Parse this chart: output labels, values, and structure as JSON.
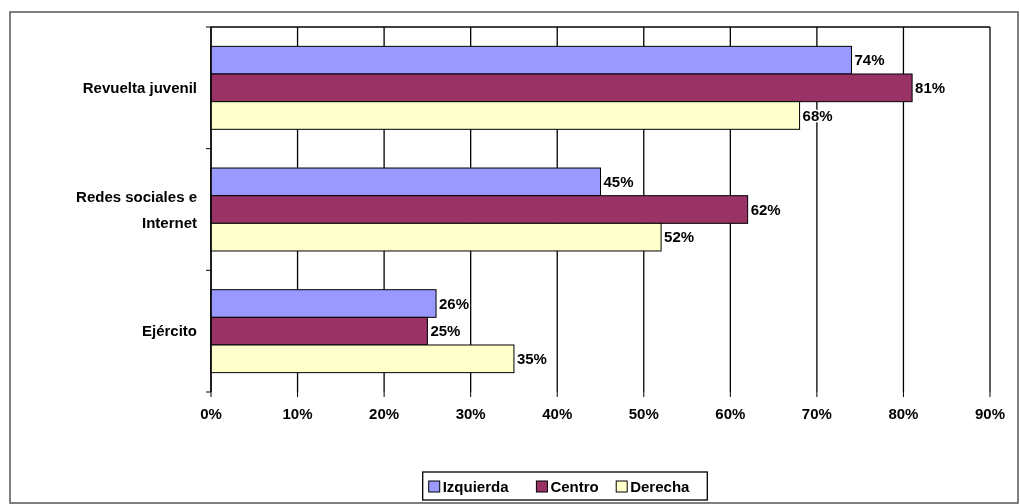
{
  "chart_data": {
    "type": "bar",
    "orientation": "horizontal",
    "categories": [
      "Revuelta juvenil",
      "Redes sociales e Internet",
      "Ejército"
    ],
    "series": [
      {
        "name": "Izquierda",
        "color": "#9999ff",
        "values": [
          74,
          45,
          26
        ],
        "value_labels": [
          "74%",
          "45%",
          "26%"
        ]
      },
      {
        "name": "Centro",
        "color": "#993366",
        "values": [
          81,
          62,
          25
        ],
        "value_labels": [
          "81%",
          "62%",
          "25%"
        ]
      },
      {
        "name": "Derecha",
        "color": "#ffffcc",
        "values": [
          68,
          52,
          35
        ],
        "value_labels": [
          "68%",
          "52%",
          "35%"
        ]
      }
    ],
    "xlim": [
      0,
      90
    ],
    "xticks": [
      {
        "value": 0,
        "label": "0%"
      },
      {
        "value": 10,
        "label": "10%"
      },
      {
        "value": 20,
        "label": "20%"
      },
      {
        "value": 30,
        "label": "30%"
      },
      {
        "value": 40,
        "label": "40%"
      },
      {
        "value": 50,
        "label": "50%"
      },
      {
        "value": 60,
        "label": "60%"
      },
      {
        "value": 70,
        "label": "70%"
      },
      {
        "value": 80,
        "label": "80%"
      },
      {
        "value": 90,
        "label": "90%"
      }
    ],
    "grid": "x",
    "legend": "bottom"
  }
}
